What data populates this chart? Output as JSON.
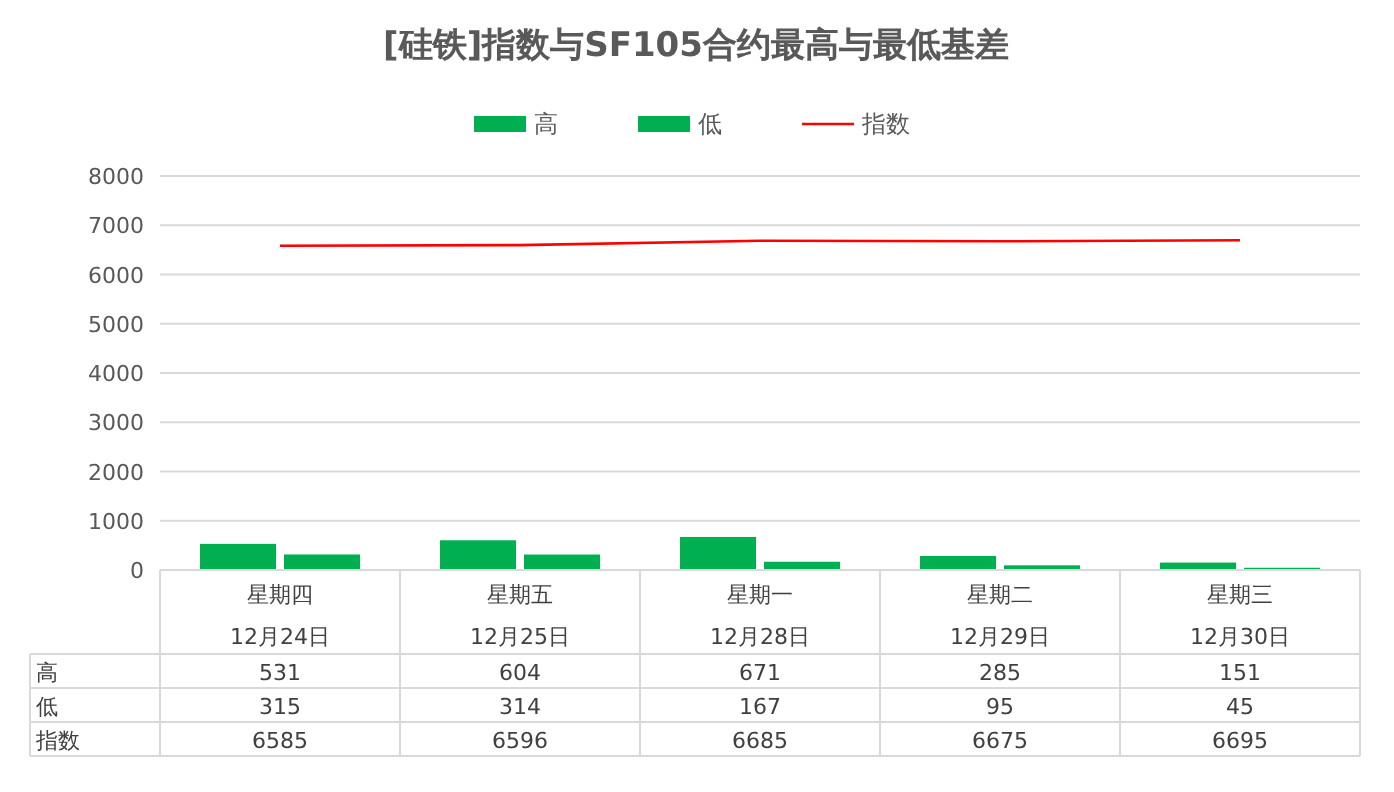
{
  "chart_data": {
    "type": "bar",
    "title": "[硅铁]指数与SF105合约最高与最低基差",
    "categories": [
      "星期四\n12月24日",
      "星期五\n12月25日",
      "星期一\n12月28日",
      "星期二\n12月29日",
      "星期三\n12月30日"
    ],
    "series": [
      {
        "name": "高",
        "color": "#00b050",
        "values": [
          531,
          604,
          671,
          285,
          151
        ]
      },
      {
        "name": "低",
        "color": "#00b050",
        "values": [
          315,
          314,
          167,
          95,
          45
        ]
      },
      {
        "name": "指数",
        "type": "line",
        "color": "#ff0000",
        "values": [
          6585,
          6596,
          6685,
          6675,
          6695
        ]
      }
    ],
    "ylim": [
      0,
      8000
    ],
    "yticks": [
      0,
      1000,
      2000,
      3000,
      4000,
      5000,
      6000,
      7000,
      8000
    ],
    "grid": "y",
    "legend": "top",
    "data_labels": true
  }
}
